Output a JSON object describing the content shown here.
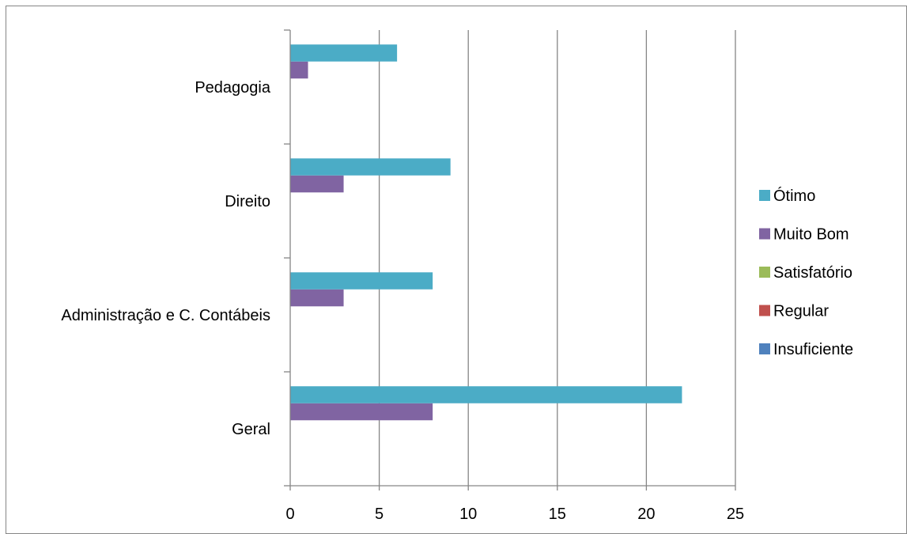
{
  "chart_data": {
    "type": "bar",
    "orientation": "horizontal",
    "categories": [
      "Geral",
      "Administração e C. Contábeis",
      "Direito",
      "Pedagogia"
    ],
    "series": [
      {
        "name": "Insuficiente",
        "color": "#4F81BD",
        "values": [
          0,
          0,
          0,
          0
        ]
      },
      {
        "name": "Regular",
        "color": "#C0504D",
        "values": [
          0,
          0,
          0,
          0
        ]
      },
      {
        "name": "Satisfatório",
        "color": "#9BBB59",
        "values": [
          0,
          0,
          0,
          0
        ]
      },
      {
        "name": "Muito Bom",
        "color": "#8064A2",
        "values": [
          8,
          3,
          3,
          1
        ]
      },
      {
        "name": "Ótimo",
        "color": "#4BACC6",
        "values": [
          22,
          8,
          9,
          6
        ]
      }
    ],
    "xlim": [
      0,
      25
    ],
    "xticks": [
      "0",
      "5",
      "10",
      "15",
      "20",
      "25"
    ],
    "grid": "vertical",
    "legend_position": "right",
    "legend_order": [
      "Ótimo",
      "Muito Bom",
      "Satisfatório",
      "Regular",
      "Insuficiente"
    ]
  }
}
